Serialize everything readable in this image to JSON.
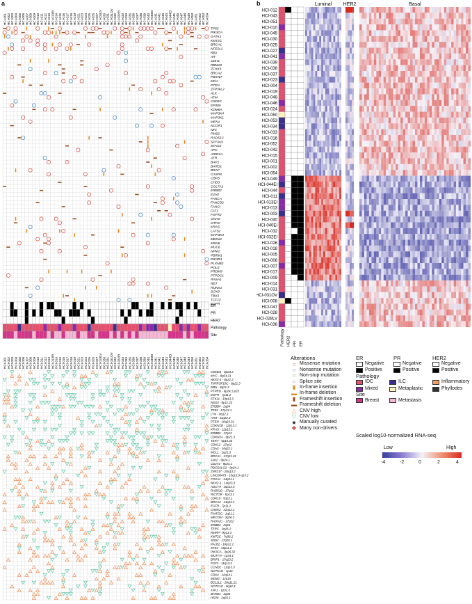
{
  "panel_a_label": "a",
  "panel_b_label": "b",
  "mutation_genes": [
    "TP53",
    "PIK3CA",
    "GATA3",
    "KMT2C",
    "BRCA1",
    "NFE2L2",
    "RB1",
    "AR",
    "CDH1",
    "RBM10",
    "ZFHX3",
    "BRCA2",
    "FBXW7",
    "MGA",
    "PTEN",
    "ZFP36L2",
    "ALK",
    "ATM",
    "CSDE1",
    "EP300",
    "KDM6A",
    "MAP3K4",
    "MAP3K1",
    "MEN1",
    "NCOR1",
    "NF1",
    "PMS2",
    "RAD51C",
    "SPTAN1",
    "STAG2",
    "APC",
    "ARID1A",
    "ATR",
    "BAP1",
    "BARD1",
    "BRAF",
    "CASP8",
    "CBFB",
    "CHD3",
    "COL7A1",
    "ERBB2",
    "EZH2",
    "FANCA",
    "FANCD2",
    "FANCI",
    "FAT1",
    "FGFR2",
    "GNAS",
    "GTF2I",
    "KRAS",
    "LATS2",
    "MAP3K4",
    "MED12",
    "MSH6",
    "MUC6",
    "NPM1",
    "PBRM1",
    "PIK3R1",
    "PLXNB2",
    "POLE",
    "PRDM9",
    "PTPDC1",
    "RASA1",
    "RET",
    "RUNX1",
    "SOX9",
    "TBX3",
    "TCF12",
    "EGFR"
  ],
  "samples_top": [
    "HCI-001",
    "HCI-002",
    "HCI-003",
    "HCI-004",
    "HCI-005",
    "HCI-006",
    "HCI-007",
    "HCI-008",
    "HCI-009",
    "HCI-010",
    "HCI-011",
    "HCI-012",
    "HCI-013",
    "HCI-013EI",
    "HCI-014",
    "HCI-015",
    "HCI-016",
    "HCI-017",
    "HCI-018",
    "HCI-019",
    "HCI-021",
    "HCI-023",
    "HCI-024",
    "HCI-025",
    "HCI-026",
    "HCI-027",
    "HCI-028LV",
    "HCI-030",
    "HCI-031",
    "HCI-031OV",
    "HCI-032",
    "HCI-032EI",
    "HCI-033",
    "HCI-034",
    "HCI-035",
    "HCI-036",
    "HCI-037",
    "HCI-038",
    "HCI-039",
    "HCI-040",
    "HCI-040EI",
    "HCI-041",
    "HCI-042",
    "HCI-043",
    "HCI-044",
    "HCI-044EI",
    "HCI-045",
    "HCI-046",
    "HCI-047",
    "HCI-048",
    "HCI-049",
    "HCI-050",
    "HCI-051",
    "HCI-052",
    "HCI-053",
    "HCI-054"
  ],
  "annotation_rows": [
    "ER",
    "PR",
    "HER2",
    "Pathology",
    "Site"
  ],
  "cnv_genes": [
    "CSMD1 - 8p23.2",
    "MYC - 8q24.21",
    "NKX3-1 - 8p21.2",
    "TNFRSF10C - 8p21.3",
    "NBN - 8q21.3",
    "PTPRD - 9p24.1-p23",
    "EGFR - 7p11.2",
    "STK11 - 19p13.3",
    "NSD3 - 8p11.23",
    "ERBB4 - 2q34",
    "TP53 - 17p13.1",
    "LYN - 8q12.1",
    "ATM - 11q22.3",
    "PTEN - 10q23.31",
    "CDKN1B - 12p13.1",
    "KRAS - 12p12.1",
    "ERBB2 - 17q12",
    "CDKN2A - 9p21.3",
    "TERT - 5p15.33",
    "CDK12 - 17q12",
    "CDH1 - 16q22.1",
    "MCL1 - 1q21.3",
    "BRCA1 - 17q21.31",
    "JAK2 - 9p24.1",
    "CD274 - 9p24.1",
    "PDCD1LG2 - 9p24.1",
    "ZNF217 - 20q13.2",
    "LINC00473 - 13q13.3-q13.2",
    "FOXA1 - 14q21.1",
    "NKX2-1 - 14q13.3",
    "ADCY9 - 16p13.3",
    "RAD51D - 17q12",
    "RICTOR - 5p13.1",
    "CDK19 - 5q22.1",
    "BRCA2 - 13q13.1",
    "EGFR - 7p11.2",
    "CHEK2 - 22q12.1",
    "FAM72C - 1q21.1",
    "MECOM - 3q26.2",
    "RAD51C - 17q22",
    "ERBB4 - 2q34",
    "TERC - 3q26.2",
    "RMRP - 9p13.3",
    "KMT2C - 7q36.1",
    "SDS2 - 17q25.1",
    "PALB2 - 16p12.2",
    "STK4 - 16p11.2",
    "PIK3CA - 3q26.32",
    "MUTYH - 1p34.1",
    "BRIP1 - 17q23.2",
    "FGF3 - 11q13.3",
    "CCND1 - 11q13.3",
    "NOTCH2 - 1p12",
    "CDK4 - 12q14.1",
    "MDM2 - 12q15",
    "BCL2L1 - 20q11.21",
    "NOTCH1 - 9q34.3",
    "JAK1 - 1p31.3",
    "BARD1 - 2q35",
    "HSP6 - 2q31.1"
  ],
  "legend": {
    "alterations_title": "Alterations",
    "alterations": [
      {
        "label": "Missense mutation",
        "icon": "circle",
        "color": "#d9463a"
      },
      {
        "label": "Nonsense mutation",
        "icon": "circle",
        "color": "#3b84c4"
      },
      {
        "label": "Non-stop mutation",
        "icon": "circle",
        "color": "#4aa84a"
      },
      {
        "label": "Splice site",
        "icon": "circle",
        "color": "#9b59b6"
      },
      {
        "label": "In-frame insertion",
        "icon": "bar-v",
        "color": "#e08a1e"
      },
      {
        "label": "In-frame deletion",
        "icon": "bar-h",
        "color": "#e08a1e"
      },
      {
        "label": "Frameshift insertion",
        "icon": "bar-v",
        "color": "#9c4a18"
      },
      {
        "label": "Frameshift deletion",
        "icon": "bar-h",
        "color": "#9c4a18"
      },
      {
        "label": "CNV high",
        "icon": "tri-up",
        "color": "#ef8a4b"
      },
      {
        "label": "CNV low",
        "icon": "tri-down",
        "color": "#5bc8a6"
      },
      {
        "label": "Manually curated",
        "icon": "star",
        "color": "#111111"
      },
      {
        "label": "Many non-drivers",
        "icon": "plus",
        "color": "#d9463a"
      }
    ],
    "er_title": "ER",
    "pr_title": "PR",
    "her2_title": "HER2",
    "negative": "Negative",
    "positive": "Positive",
    "pathology_title": "Pathology",
    "pathology": [
      {
        "label": "IDC",
        "color": "#e6506e"
      },
      {
        "label": "ILC",
        "color": "#3a2f8f"
      },
      {
        "label": "Inflammatory",
        "color": "#f2a066"
      },
      {
        "label": "Mixed",
        "color": "#8b2aa8"
      },
      {
        "label": "Metaplastic",
        "color": "#fdf0c0"
      },
      {
        "label": "Phyllodes",
        "color": "#333333"
      }
    ],
    "site_title": "Site",
    "site": [
      {
        "label": "Breast",
        "color": "#d6338a"
      },
      {
        "label": "Metastasis",
        "color": "#f5b8d4"
      }
    ],
    "scale_title": "Scaled log10-normalized RNA-seq",
    "scale_low": "Low",
    "scale_high": "High",
    "scale_ticks": [
      "-4",
      "-2",
      "0",
      "2",
      "4"
    ]
  },
  "panel_b": {
    "group_labels": [
      "Luminal",
      "HER2",
      "Basal"
    ],
    "bottom_labels": [
      "Pathology",
      "HER2",
      "PR",
      "ER"
    ],
    "samples": [
      "HCI-012",
      "HCI-043",
      "HCI-051",
      "HCI-010",
      "HCI-045",
      "HCI-030",
      "HCI-025",
      "HCI-027",
      "HCI-041",
      "HCI-039",
      "HCI-038",
      "HCI-037",
      "HCI-023",
      "HCI-004",
      "HCI-019",
      "HCI-048",
      "HCI-046",
      "HCI-024",
      "HCI-050",
      "HCI-053",
      "HCI-034",
      "HCI-033",
      "HCI-016",
      "HCI-052",
      "HCI-042",
      "HCI-015",
      "HCI-001",
      "HCI-002",
      "HCI-054",
      "HCI-049",
      "HCI-044EI",
      "HCI-044",
      "HCI-011",
      "HCI-013EI",
      "HCI-013",
      "HCI-003",
      "HCI-040",
      "HCI-040EI",
      "HCI-032",
      "HCI-032EI",
      "HCI-026",
      "HCI-018",
      "HCI-005",
      "HCI-006",
      "HCI-007",
      "HCI-017",
      "HCI-009",
      "HCI-014",
      "HCI-031",
      "HCI-031OV",
      "HCI-008",
      "HCI-047",
      "HCI-028",
      "HCI-028LV",
      "HCI-036"
    ]
  }
}
